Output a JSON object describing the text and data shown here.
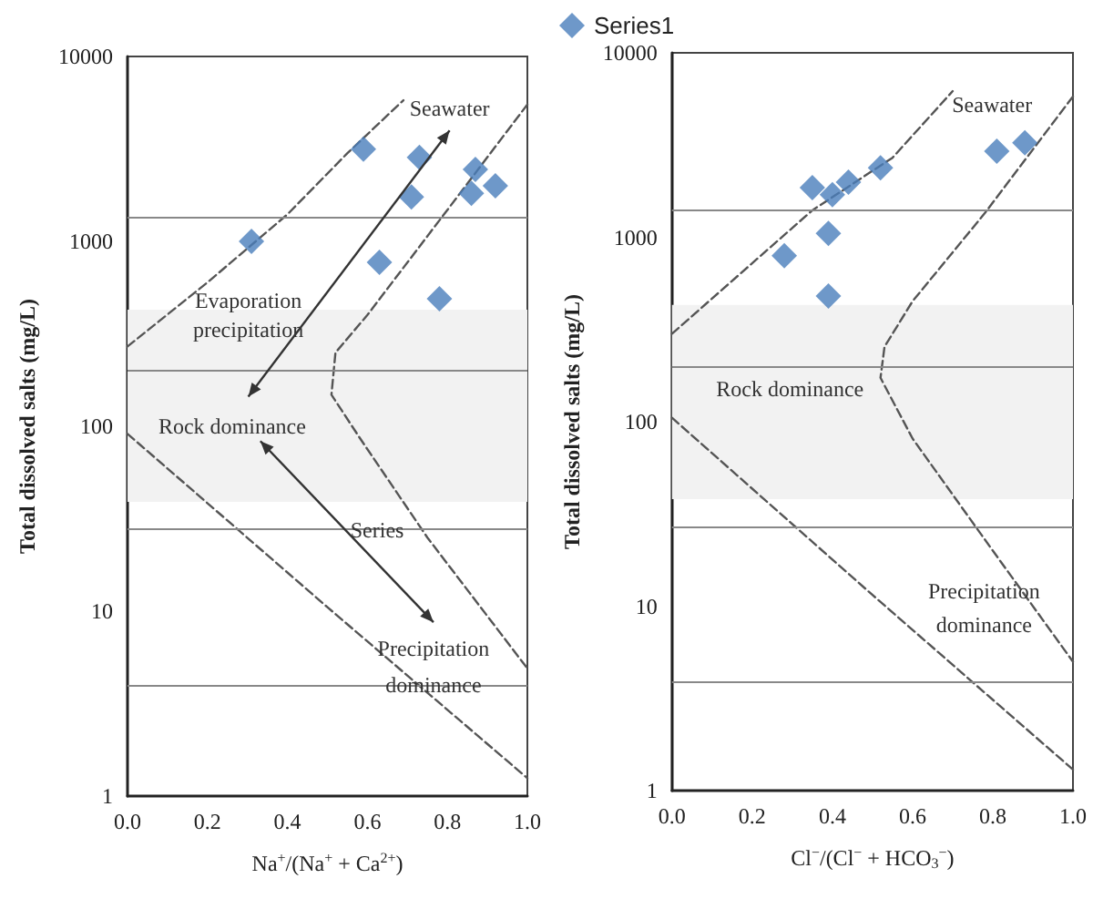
{
  "chart_data": [
    {
      "type": "scatter",
      "xlabel": "Na$^{+}$/(Na$^{+}$ + Ca$^{2+}$)",
      "ylabel": "Total dissolved salts (mg/L)",
      "log": "y",
      "grid": false,
      "legend": false,
      "xlim": [
        0,
        1
      ],
      "xticks": [
        {
          "value": 0,
          "label": "0.0"
        },
        {
          "value": 0.2,
          "label": "0.2"
        },
        {
          "value": 0.4,
          "label": "0.4"
        },
        {
          "value": 0.6,
          "label": "0.6"
        },
        {
          "value": 0.8,
          "label": "0.8"
        },
        {
          "value": 1,
          "label": "1.0"
        }
      ],
      "ylim": [
        1,
        10000
      ],
      "yticks": [
        1,
        10,
        100,
        1000,
        10000
      ],
      "x": [
        0.59,
        0.73,
        0.71,
        0.31,
        0.63,
        0.78,
        0.87,
        0.86,
        0.92
      ],
      "series": [
        {
          "marker": "diamond",
          "color": "#4a7ebb",
          "values": [
            3150,
            2850,
            1740,
            1000,
            770,
            490,
            2450,
            1820,
            2000
          ]
        },
        {
          "type": "line",
          "line_style": "dashed",
          "color": "#555555",
          "x": [
            0,
            0.2,
            0.4,
            0.55,
            0.69
          ],
          "values": [
            270,
            600,
            1400,
            3000,
            5800
          ]
        },
        {
          "type": "line",
          "line_style": "dashed",
          "color": "#555555",
          "x": [
            1.0,
            0.8,
            0.6,
            0.52,
            0.51,
            0.58,
            0.75,
            1.0
          ],
          "values": [
            5500,
            1480,
            400,
            250,
            148,
            87,
            25,
            4.9
          ]
        },
        {
          "type": "line",
          "line_style": "dashed",
          "color": "#555555",
          "x": [
            0,
            0.5,
            1.0
          ],
          "values": [
            91,
            10.5,
            1.25
          ]
        }
      ],
      "ref_lines": [
        {
          "axis": "y",
          "value": 1360,
          "color": "#888888"
        },
        {
          "axis": "y",
          "value": 202,
          "color": "#888888"
        },
        {
          "axis": "y",
          "value": 28,
          "color": "#888888"
        },
        {
          "axis": "y",
          "value": 4,
          "color": "#888888"
        }
      ],
      "bands": [
        {
          "axis": "y",
          "from": 39,
          "to": 427,
          "color": "#f2f2f2"
        }
      ],
      "annotations": [
        "Seawater",
        "Evaporation",
        "precipitation",
        "Rock dominance",
        "Series",
        "Precipitation",
        "dominance"
      ]
    },
    {
      "type": "scatter",
      "xlabel": "Cl$^{−}$/(Cl$^{−}$ + HCO$_{3}$$^{−}$)",
      "ylabel": "Total dissolved salts (mg/L)",
      "log": "y",
      "grid": false,
      "legend": "top left",
      "xlim": [
        0,
        1
      ],
      "xticks": [
        {
          "value": 0,
          "label": "0.0"
        },
        {
          "value": 0.2,
          "label": "0.2"
        },
        {
          "value": 0.4,
          "label": "0.4"
        },
        {
          "value": 0.6,
          "label": "0.6"
        },
        {
          "value": 0.8,
          "label": "0.8"
        },
        {
          "value": 1,
          "label": "1.0"
        }
      ],
      "ylim": [
        1,
        10000
      ],
      "yticks": [
        1,
        10,
        100,
        1000,
        10000
      ],
      "x": [
        0.28,
        0.35,
        0.4,
        0.44,
        0.52,
        0.39,
        0.39,
        0.81,
        0.88
      ],
      "series": [
        {
          "name": "Series1",
          "marker": "diamond",
          "color": "#4a7ebb",
          "values": [
            795,
            1860,
            1700,
            1990,
            2380,
            1050,
            480,
            2930,
            3250
          ]
        },
        {
          "type": "line",
          "line_style": "dashed",
          "color": "#555555",
          "x": [
            0,
            0.35,
            0.55,
            0.7
          ],
          "values": [
            300,
            1400,
            2700,
            6200
          ]
        },
        {
          "type": "line",
          "line_style": "dashed",
          "color": "#555555",
          "x": [
            1.0,
            0.78,
            0.6,
            0.53,
            0.52,
            0.6,
            0.8,
            1.0
          ],
          "values": [
            5800,
            1350,
            450,
            255,
            173,
            81,
            20,
            5
          ]
        },
        {
          "type": "line",
          "line_style": "dashed",
          "color": "#555555",
          "x": [
            0,
            0.5,
            1.0
          ],
          "values": [
            105,
            11.5,
            1.3
          ]
        }
      ],
      "ref_lines": [
        {
          "axis": "y",
          "value": 1410,
          "color": "#888888"
        },
        {
          "axis": "y",
          "value": 199,
          "color": "#888888"
        },
        {
          "axis": "y",
          "value": 27,
          "color": "#888888"
        },
        {
          "axis": "y",
          "value": 3.9,
          "color": "#888888"
        }
      ],
      "bands": [
        {
          "axis": "y",
          "from": 38,
          "to": 430,
          "color": "#f2f2f2"
        }
      ],
      "annotations": [
        "Seawater",
        "Rock dominance",
        "Precipitation",
        "dominance"
      ]
    }
  ]
}
